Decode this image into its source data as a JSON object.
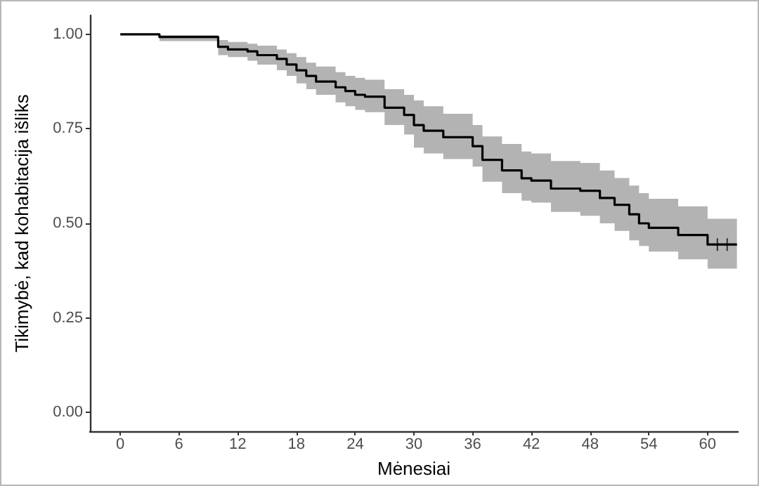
{
  "chart_data": {
    "type": "step",
    "xlabel": "Mėnesiai",
    "ylabel": "Tikimybė, kad kohabitacija išliks",
    "xlim": [
      -3.1,
      63.1
    ],
    "xticks": [
      0,
      6,
      12,
      18,
      24,
      30,
      36,
      42,
      48,
      54,
      60
    ],
    "ylim": [
      -0.05,
      1.05
    ],
    "yticks": [
      {
        "value": 0,
        "label": "0.00"
      },
      {
        "value": 0.25,
        "label": "0.25"
      },
      {
        "value": 0.5,
        "label": "0.50"
      },
      {
        "value": 0.75,
        "label": "0.75"
      },
      {
        "value": 1,
        "label": "1.00"
      }
    ],
    "grid": false,
    "marker": "none",
    "line_style": "solid",
    "series": [
      {
        "color": "#000000",
        "x": [
          0,
          4,
          10,
          11,
          13,
          14,
          16,
          17,
          18,
          19,
          20,
          22,
          23,
          24,
          25,
          27,
          29,
          30,
          31,
          33,
          36,
          37,
          39,
          41,
          42,
          44,
          47,
          49,
          50.5,
          52,
          53,
          54,
          57,
          60,
          63
        ],
        "values": [
          1,
          0.993,
          0.967,
          0.96,
          0.955,
          0.945,
          0.935,
          0.92,
          0.905,
          0.89,
          0.875,
          0.86,
          0.85,
          0.84,
          0.835,
          0.806,
          0.787,
          0.76,
          0.745,
          0.728,
          0.704,
          0.668,
          0.64,
          0.619,
          0.613,
          0.592,
          0.586,
          0.567,
          0.549,
          0.524,
          0.5,
          0.488,
          0.469,
          0.444,
          0.444
        ],
        "upper": [
          1,
          0.998,
          0.985,
          0.98,
          0.975,
          0.97,
          0.96,
          0.95,
          0.94,
          0.925,
          0.915,
          0.9,
          0.89,
          0.885,
          0.88,
          0.855,
          0.84,
          0.825,
          0.81,
          0.79,
          0.76,
          0.73,
          0.71,
          0.69,
          0.685,
          0.665,
          0.66,
          0.64,
          0.62,
          0.6,
          0.58,
          0.565,
          0.545,
          0.512,
          0.512
        ],
        "lower": [
          1,
          0.982,
          0.945,
          0.94,
          0.93,
          0.92,
          0.905,
          0.89,
          0.87,
          0.855,
          0.84,
          0.82,
          0.81,
          0.8,
          0.794,
          0.76,
          0.735,
          0.7,
          0.685,
          0.67,
          0.65,
          0.61,
          0.58,
          0.56,
          0.555,
          0.53,
          0.52,
          0.5,
          0.48,
          0.455,
          0.44,
          0.425,
          0.405,
          0.38,
          0.38
        ]
      },
      {
        "type": "scatter",
        "marker": "cross",
        "color": "#000000",
        "x": [
          61,
          62
        ],
        "values": [
          0.444,
          0.444
        ]
      }
    ]
  }
}
